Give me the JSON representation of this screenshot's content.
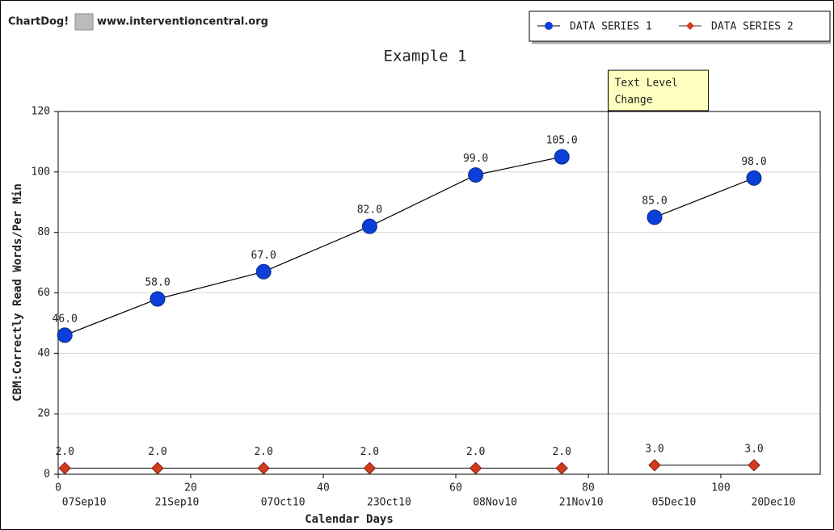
{
  "header": {
    "brand": "ChartDog!",
    "url": "www.interventioncentral.org"
  },
  "chart_data": {
    "type": "line",
    "title": "Example 1",
    "x_label": "Calendar Days",
    "y_label": "CBM:Correctly Read Words/Per Min",
    "x": [
      1,
      15,
      31,
      47,
      63,
      76,
      90,
      105
    ],
    "date_labels": [
      "07Sep10",
      "21Sep10",
      "07Oct10",
      "23Oct10",
      "08Nov10",
      "21Nov10",
      "05Dec10",
      "20Dec10"
    ],
    "series": [
      {
        "name": "DATA SERIES 1",
        "color": "#0b3fd8",
        "line_color": "#000000",
        "marker": "circle",
        "values": [
          46,
          58,
          67,
          82,
          99,
          105,
          85,
          98
        ],
        "value_labels": [
          "46.0",
          "58.0",
          "67.0",
          "82.0",
          "99.0",
          "105.0",
          "85.0",
          "98.0"
        ],
        "label_color": "#000000"
      },
      {
        "name": "DATA SERIES 2",
        "color": "#d23c1c",
        "line_color": "#333333",
        "marker": "diamond",
        "values": [
          2,
          2,
          2,
          2,
          2,
          2,
          3,
          3
        ],
        "value_labels": [
          "2.0",
          "2.0",
          "2.0",
          "2.0",
          "2.0",
          "2.0",
          "3.0",
          "3.0"
        ],
        "label_color": "#1f4fb0"
      }
    ],
    "phase_change": {
      "x": 83,
      "label": [
        "Text Level",
        "Change"
      ]
    },
    "xlim": [
      0,
      115
    ],
    "xticks": [
      0,
      20,
      40,
      60,
      80,
      100
    ],
    "ylim": [
      0,
      120
    ],
    "yticks": [
      0,
      20,
      40,
      60,
      80,
      100,
      120
    ],
    "grid": true,
    "legend": "top-right"
  }
}
